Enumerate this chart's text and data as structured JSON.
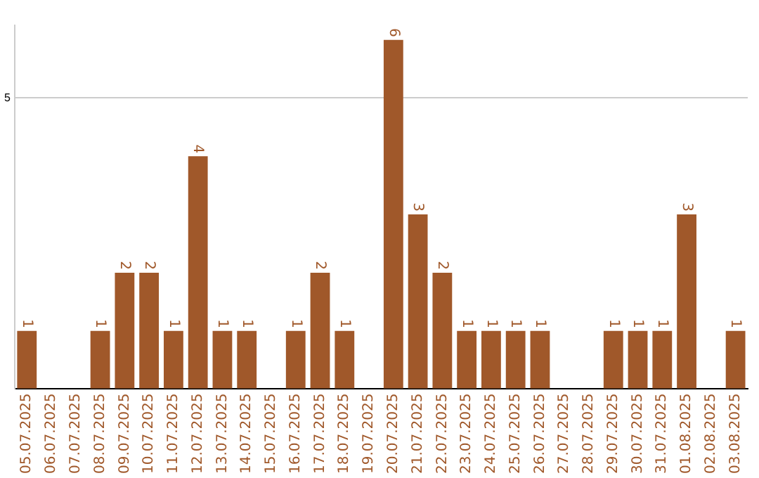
{
  "chart_data": {
    "type": "bar",
    "categories": [
      "05.07.2025",
      "06.07.2025",
      "07.07.2025",
      "08.07.2025",
      "09.07.2025",
      "10.07.2025",
      "11.07.2025",
      "12.07.2025",
      "13.07.2025",
      "14.07.2025",
      "15.07.2025",
      "16.07.2025",
      "17.07.2025",
      "18.07.2025",
      "19.07.2025",
      "20.07.2025",
      "21.07.2025",
      "22.07.2025",
      "23.07.2025",
      "24.07.2025",
      "25.07.2025",
      "26.07.2025",
      "27.07.2025",
      "28.07.2025",
      "29.07.2025",
      "30.07.2025",
      "31.07.2025",
      "01.08.2025",
      "02.08.2025",
      "03.08.2025"
    ],
    "values": [
      1,
      null,
      null,
      1,
      2,
      2,
      1,
      4,
      1,
      1,
      null,
      1,
      2,
      1,
      null,
      6,
      3,
      2,
      1,
      1,
      1,
      1,
      null,
      null,
      1,
      1,
      1,
      3,
      null,
      1
    ],
    "color": "#a0582a",
    "ylim": [
      0,
      6.25
    ],
    "yticks": [
      {
        "value": 0,
        "label": null
      },
      5
    ],
    "grid": "y",
    "data_labels": true
  }
}
